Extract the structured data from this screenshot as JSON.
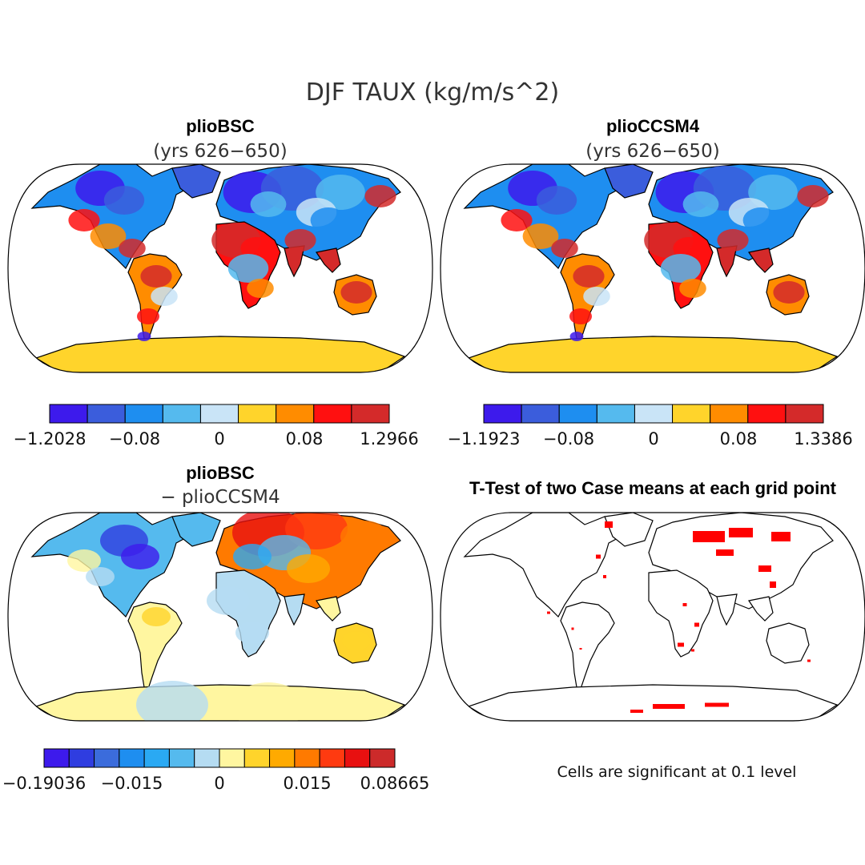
{
  "figure": {
    "title": "DJF TAUX (kg/m/s^2)"
  },
  "panels": [
    {
      "id": "bsc",
      "title": "plioBSC",
      "subtitle": "(yrs 626−650)",
      "kind": "field",
      "colorbar": {
        "colors": [
          "#3d1aec",
          "#3b5ddc",
          "#1e8ef0",
          "#55baee",
          "#c9e4f7",
          "#ffd42b",
          "#ff8c00",
          "#ff1010",
          "#d42a2a"
        ],
        "labels": [
          "−1.2028",
          "−0.08",
          "0",
          "0.08",
          "1.2966"
        ]
      }
    },
    {
      "id": "ccsm4",
      "title": "plioCCSM4",
      "subtitle": "(yrs 626−650)",
      "kind": "field",
      "colorbar": {
        "colors": [
          "#3d1aec",
          "#3b5ddc",
          "#1e8ef0",
          "#55baee",
          "#c9e4f7",
          "#ffd42b",
          "#ff8c00",
          "#ff1010",
          "#d42a2a"
        ],
        "labels": [
          "−1.1923",
          "−0.08",
          "0",
          "0.08",
          "1.3386"
        ]
      }
    },
    {
      "id": "diff",
      "title": "plioBSC",
      "subtitle": "− plioCCSM4",
      "kind": "difference",
      "colorbar": {
        "colors": [
          "#3d1aec",
          "#2f3de0",
          "#3b6cdc",
          "#1e8ef0",
          "#2aa9f3",
          "#55baee",
          "#b5dcf2",
          "#fff6a0",
          "#ffd42b",
          "#ffaa00",
          "#ff7a00",
          "#ff3a10",
          "#e81010",
          "#cc2a2a"
        ],
        "labels": [
          "−0.19036",
          "−0.015",
          "0",
          "0.015",
          "0.08665"
        ]
      }
    },
    {
      "id": "ttest",
      "title": "T-Test of two Case means at each grid point",
      "subtitle": "",
      "kind": "significance",
      "note": "Cells are significant at 0.1 level",
      "sig_color": "#ff0000"
    }
  ]
}
